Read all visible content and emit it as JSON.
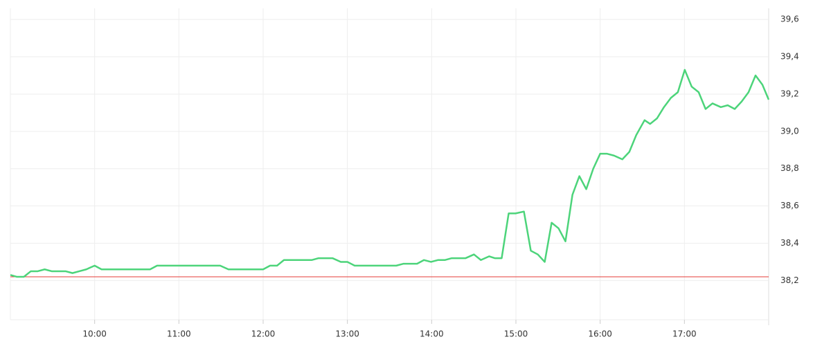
{
  "chart_data": {
    "type": "line",
    "x": [
      9.0,
      9.078,
      9.16,
      9.243,
      9.325,
      9.407,
      9.49,
      9.654,
      9.737,
      9.819,
      9.901,
      10.0,
      10.082,
      10.658,
      10.741,
      11.49,
      11.588,
      12.0,
      12.082,
      12.165,
      12.247,
      12.576,
      12.658,
      12.823,
      12.922,
      13.0,
      13.086,
      13.58,
      13.663,
      13.827,
      13.909,
      13.992,
      14.074,
      14.156,
      14.239,
      14.403,
      14.502,
      14.584,
      14.683,
      14.749,
      14.831,
      14.914,
      14.996,
      15.095,
      15.177,
      15.26,
      15.342,
      15.424,
      15.506,
      15.588,
      15.671,
      15.753,
      15.835,
      15.918,
      16.0,
      16.082,
      16.165,
      16.263,
      16.346,
      16.428,
      16.527,
      16.593,
      16.675,
      16.757,
      16.84,
      16.922,
      17.004,
      17.086,
      17.169,
      17.251,
      17.333,
      17.432,
      17.514,
      17.597,
      17.679,
      17.761,
      17.844,
      17.926,
      18.0
    ],
    "series": [
      {
        "color": "#4cd47a",
        "values": [
          38.23,
          38.22,
          38.22,
          38.25,
          38.25,
          38.26,
          38.25,
          38.25,
          38.24,
          38.25,
          38.26,
          38.28,
          38.26,
          38.26,
          38.28,
          38.28,
          38.26,
          38.26,
          38.28,
          38.28,
          38.31,
          38.31,
          38.32,
          38.32,
          38.3,
          38.3,
          38.28,
          38.28,
          38.29,
          38.29,
          38.31,
          38.3,
          38.31,
          38.31,
          38.32,
          38.32,
          38.34,
          38.31,
          38.33,
          38.32,
          38.32,
          38.56,
          38.56,
          38.57,
          38.36,
          38.34,
          38.3,
          38.51,
          38.48,
          38.41,
          38.66,
          38.76,
          38.69,
          38.8,
          38.88,
          38.88,
          38.87,
          38.85,
          38.89,
          38.98,
          39.06,
          39.04,
          39.07,
          39.13,
          39.18,
          39.21,
          39.33,
          39.24,
          39.21,
          39.12,
          39.15,
          39.13,
          39.14,
          39.12,
          39.16,
          39.21,
          39.3,
          39.25,
          39.17
        ]
      }
    ],
    "reference_line": {
      "value": 38.22,
      "color": "#e53935"
    },
    "xlim": [
      9,
      18
    ],
    "xticks": [
      {
        "value": 10,
        "label": "10:00"
      },
      {
        "value": 11,
        "label": "11:00"
      },
      {
        "value": 12,
        "label": "12:00"
      },
      {
        "value": 13,
        "label": "13:00"
      },
      {
        "value": 14,
        "label": "14:00"
      },
      {
        "value": 15,
        "label": "15:00"
      },
      {
        "value": 16,
        "label": "16:00"
      },
      {
        "value": 17,
        "label": "17:00"
      }
    ],
    "ylim": [
      37.99,
      39.66
    ],
    "yticks": [
      {
        "value": 38.2,
        "label": "38,2"
      },
      {
        "value": 38.4,
        "label": "38,4"
      },
      {
        "value": 38.6,
        "label": "38,6"
      },
      {
        "value": 38.8,
        "label": "38,8"
      },
      {
        "value": 39.0,
        "label": "39,0"
      },
      {
        "value": 39.2,
        "label": "39,2"
      },
      {
        "value": 39.4,
        "label": "39,4"
      },
      {
        "value": 39.6,
        "label": "39,6"
      }
    ],
    "grid": true,
    "y_axis_side": "right"
  }
}
